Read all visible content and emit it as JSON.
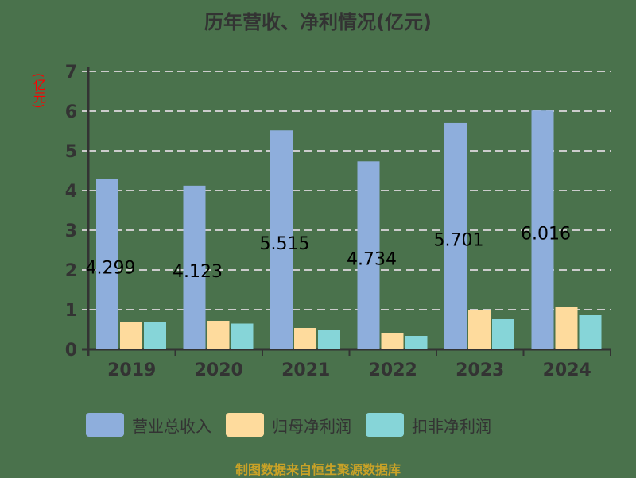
{
  "chart_data": {
    "type": "bar",
    "title": "历年营收、净利情况(亿元)",
    "xlabel": "",
    "ylabel": "(亿元)",
    "ylim": [
      0,
      7
    ],
    "yticks": [
      0,
      1,
      2,
      3,
      4,
      5,
      6,
      7
    ],
    "grid": "horizontal dashed",
    "legend_position": "bottom",
    "categories": [
      "2019",
      "2020",
      "2021",
      "2022",
      "2023",
      "2024"
    ],
    "series": [
      {
        "name": "营业总收入",
        "color": "#8eaedc",
        "values": [
          4.299,
          4.123,
          5.515,
          4.734,
          5.701,
          6.016
        ],
        "labels": [
          "4.299",
          "4.123",
          "5.515",
          "4.734",
          "5.701",
          "6.016"
        ]
      },
      {
        "name": "归母净利润",
        "color": "#fedb9d",
        "values": [
          0.7,
          0.72,
          0.54,
          0.42,
          0.98,
          1.06
        ]
      },
      {
        "name": "扣非净利润",
        "color": "#86d5d8",
        "values": [
          0.68,
          0.65,
          0.5,
          0.34,
          0.76,
          0.86
        ]
      }
    ]
  },
  "title": "历年营收、净利情况(亿元)",
  "unit": "(亿元)",
  "legend": [
    {
      "label": "营业总收入",
      "color": "#8eaedc"
    },
    {
      "label": "归母净利润",
      "color": "#fedb9d"
    },
    {
      "label": "扣非净利润",
      "color": "#86d5d8"
    }
  ],
  "footer": "制图数据来自恒生聚源数据库",
  "colors": {
    "background": "#4a724c",
    "axis": "#333333",
    "grid": "#cccccc",
    "unit": "#ff0000",
    "footer": "#c9a227"
  }
}
